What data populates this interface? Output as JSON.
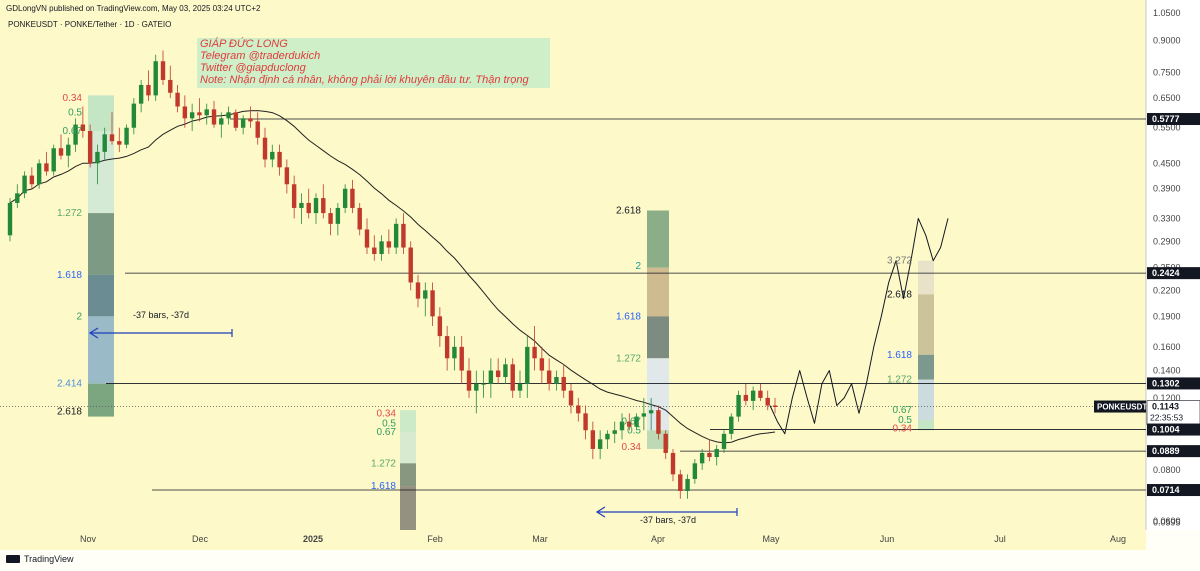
{
  "header": {
    "published": "GDLongVN published on TradingView.com, May 03, 2025 03:24 UTC+2",
    "symbol_line": "PONKEUSDT · PONKE/Tether · 1D · GATEIO"
  },
  "note_box": {
    "lines": [
      "GIÁP ĐỨC LONG",
      "Telegram @traderdukich",
      "Twitter @giapduclong",
      "Note: Nhận định cá nhân, không phải lời khuyên đầu tư. Thận trọng"
    ]
  },
  "footer": {
    "brand": "TradingView"
  },
  "colors": {
    "background": "#fdf9c8",
    "up": "#22883a",
    "down": "#c0392b",
    "ma": "#222222",
    "fib_red": "#e04b4b",
    "fib_green": "#2f9e5f",
    "fib_blue": "#2962ff",
    "arrow": "#1e3fbf"
  },
  "chart_data": {
    "type": "candlestick",
    "symbol": "PONKEUSDT",
    "timeframe": "1D",
    "exchange": "GATEIO",
    "y_scale": "log",
    "ylim": [
      0.057,
      1.08
    ],
    "y_ticks": [
      1.05,
      0.9,
      0.75,
      0.65,
      0.55,
      0.45,
      0.39,
      0.33,
      0.29,
      0.25,
      0.22,
      0.19,
      0.16,
      0.14,
      0.12,
      0.1,
      0.08,
      0.06,
      0.0595
    ],
    "y_tick_labels": [
      "1.0500",
      "0.9000",
      "0.7500",
      "0.6500",
      "0.5500",
      "0.4500",
      "0.3900",
      "0.3300",
      "0.2900",
      "0.2500",
      "0.2200",
      "0.1900",
      "0.1600",
      "0.1400",
      "0.1200",
      "0.1000",
      "0.0800",
      "0.0600",
      "0.0595"
    ],
    "x_labels": [
      "Nov",
      "Dec",
      "2025",
      "Feb",
      "Mar",
      "Apr",
      "May",
      "Jun",
      "Jul",
      "Aug"
    ],
    "x_label_pos": [
      88,
      200,
      313,
      435,
      540,
      658,
      771,
      887,
      1000,
      1118
    ],
    "price_badges": [
      {
        "label": "0.5777",
        "value": 0.5777,
        "type": "line"
      },
      {
        "label": "0.2424",
        "value": 0.2424,
        "type": "line"
      },
      {
        "label": "0.1302",
        "value": 0.1302,
        "type": "line"
      },
      {
        "label": "0.1143",
        "value": 0.1143,
        "type": "last",
        "symbol": "PONKEUSDT",
        "countdown": "22:35:53"
      },
      {
        "label": "0.1004",
        "value": 0.1004,
        "type": "line"
      },
      {
        "label": "0.0889",
        "value": 0.0889,
        "type": "line"
      },
      {
        "label": "0.0714",
        "value": 0.0714,
        "type": "line"
      }
    ],
    "fib_ranges": [
      {
        "levels": [
          {
            "label": "0.34",
            "value": 0.65,
            "color": "red"
          },
          {
            "label": "0.5",
            "value": 0.6,
            "color": "green"
          },
          {
            "label": "0.67",
            "value": 0.54,
            "color": "green"
          },
          {
            "label": "1.272",
            "value": 0.34,
            "color": "lightgreen"
          },
          {
            "label": "1.618",
            "value": 0.24,
            "color": "blue"
          },
          {
            "label": "2",
            "value": 0.19,
            "color": "green"
          },
          {
            "label": "2.414",
            "value": 0.13,
            "color": "lightblue"
          },
          {
            "label": "2.618",
            "value": 0.111,
            "color": "black"
          }
        ]
      },
      {
        "levels": [
          {
            "label": "0.34",
            "value": 0.11,
            "color": "red"
          },
          {
            "label": "0.5",
            "value": 0.104,
            "color": "green"
          },
          {
            "label": "0.67",
            "value": 0.099,
            "color": "green"
          },
          {
            "label": "1.272",
            "value": 0.083,
            "color": "lightgreen"
          },
          {
            "label": "1.618",
            "value": 0.073,
            "color": "blue"
          }
        ]
      },
      {
        "levels": [
          {
            "label": "2.618",
            "value": 0.345,
            "color": "black"
          },
          {
            "label": "2",
            "value": 0.252,
            "color": "teal"
          },
          {
            "label": "1.618",
            "value": 0.19,
            "color": "blue"
          },
          {
            "label": "1.272",
            "value": 0.15,
            "color": "lightgreen"
          },
          {
            "label": "0.67",
            "value": 0.105,
            "color": "green"
          },
          {
            "label": "0.5",
            "value": 0.1,
            "color": "green"
          },
          {
            "label": "0.34",
            "value": 0.091,
            "color": "red"
          }
        ]
      },
      {
        "levels": [
          {
            "label": "3.272",
            "value": 0.26,
            "color": "gray"
          },
          {
            "label": "2.618",
            "value": 0.215,
            "color": "black"
          },
          {
            "label": "1.618",
            "value": 0.153,
            "color": "blue"
          },
          {
            "label": "1.272",
            "value": 0.133,
            "color": "lightgreen"
          },
          {
            "label": "0.67",
            "value": 0.112,
            "color": "green"
          },
          {
            "label": "0.5",
            "value": 0.106,
            "color": "green"
          },
          {
            "label": "0.34",
            "value": 0.101,
            "color": "red"
          }
        ]
      }
    ],
    "measure_labels": [
      "-37 bars, -37d",
      "-37 bars, -37d"
    ],
    "candles_ohlc": [
      [
        0.3,
        0.37,
        0.29,
        0.36
      ],
      [
        0.36,
        0.4,
        0.35,
        0.38
      ],
      [
        0.38,
        0.43,
        0.37,
        0.42
      ],
      [
        0.42,
        0.44,
        0.39,
        0.4
      ],
      [
        0.4,
        0.46,
        0.39,
        0.45
      ],
      [
        0.45,
        0.48,
        0.42,
        0.43
      ],
      [
        0.43,
        0.5,
        0.42,
        0.49
      ],
      [
        0.49,
        0.53,
        0.46,
        0.47
      ],
      [
        0.47,
        0.52,
        0.44,
        0.5
      ],
      [
        0.5,
        0.58,
        0.48,
        0.56
      ],
      [
        0.56,
        0.62,
        0.52,
        0.54
      ],
      [
        0.54,
        0.56,
        0.44,
        0.45
      ],
      [
        0.45,
        0.5,
        0.4,
        0.48
      ],
      [
        0.48,
        0.55,
        0.46,
        0.53
      ],
      [
        0.53,
        0.6,
        0.5,
        0.51
      ],
      [
        0.51,
        0.55,
        0.48,
        0.5
      ],
      [
        0.5,
        0.56,
        0.49,
        0.55
      ],
      [
        0.55,
        0.65,
        0.53,
        0.63
      ],
      [
        0.63,
        0.72,
        0.6,
        0.7
      ],
      [
        0.7,
        0.76,
        0.64,
        0.66
      ],
      [
        0.66,
        0.83,
        0.64,
        0.8
      ],
      [
        0.8,
        0.85,
        0.7,
        0.72
      ],
      [
        0.72,
        0.78,
        0.65,
        0.67
      ],
      [
        0.67,
        0.7,
        0.6,
        0.62
      ],
      [
        0.62,
        0.66,
        0.55,
        0.58
      ],
      [
        0.58,
        0.63,
        0.54,
        0.6
      ],
      [
        0.6,
        0.65,
        0.57,
        0.59
      ],
      [
        0.59,
        0.63,
        0.56,
        0.61
      ],
      [
        0.61,
        0.64,
        0.55,
        0.56
      ],
      [
        0.56,
        0.6,
        0.52,
        0.58
      ],
      [
        0.58,
        0.62,
        0.56,
        0.6
      ],
      [
        0.6,
        0.61,
        0.54,
        0.55
      ],
      [
        0.55,
        0.59,
        0.53,
        0.58
      ],
      [
        0.58,
        0.62,
        0.55,
        0.57
      ],
      [
        0.57,
        0.6,
        0.5,
        0.52
      ],
      [
        0.52,
        0.55,
        0.44,
        0.46
      ],
      [
        0.46,
        0.5,
        0.44,
        0.48
      ],
      [
        0.48,
        0.5,
        0.42,
        0.44
      ],
      [
        0.44,
        0.46,
        0.38,
        0.4
      ],
      [
        0.4,
        0.42,
        0.33,
        0.35
      ],
      [
        0.35,
        0.38,
        0.32,
        0.36
      ],
      [
        0.36,
        0.39,
        0.33,
        0.34
      ],
      [
        0.34,
        0.38,
        0.32,
        0.37
      ],
      [
        0.37,
        0.4,
        0.33,
        0.34
      ],
      [
        0.34,
        0.35,
        0.3,
        0.32
      ],
      [
        0.32,
        0.36,
        0.3,
        0.35
      ],
      [
        0.35,
        0.4,
        0.34,
        0.39
      ],
      [
        0.39,
        0.41,
        0.34,
        0.35
      ],
      [
        0.35,
        0.36,
        0.3,
        0.31
      ],
      [
        0.31,
        0.33,
        0.27,
        0.28
      ],
      [
        0.28,
        0.3,
        0.26,
        0.27
      ],
      [
        0.27,
        0.3,
        0.26,
        0.29
      ],
      [
        0.29,
        0.31,
        0.27,
        0.28
      ],
      [
        0.28,
        0.33,
        0.27,
        0.32
      ],
      [
        0.32,
        0.34,
        0.27,
        0.28
      ],
      [
        0.28,
        0.29,
        0.22,
        0.23
      ],
      [
        0.23,
        0.24,
        0.2,
        0.21
      ],
      [
        0.21,
        0.23,
        0.19,
        0.22
      ],
      [
        0.22,
        0.23,
        0.18,
        0.19
      ],
      [
        0.19,
        0.2,
        0.16,
        0.17
      ],
      [
        0.17,
        0.18,
        0.14,
        0.15
      ],
      [
        0.15,
        0.17,
        0.14,
        0.16
      ],
      [
        0.16,
        0.17,
        0.13,
        0.14
      ],
      [
        0.14,
        0.15,
        0.12,
        0.125
      ],
      [
        0.125,
        0.14,
        0.11,
        0.13
      ],
      [
        0.13,
        0.14,
        0.12,
        0.13
      ],
      [
        0.13,
        0.15,
        0.12,
        0.14
      ],
      [
        0.14,
        0.15,
        0.13,
        0.135
      ],
      [
        0.135,
        0.15,
        0.13,
        0.145
      ],
      [
        0.145,
        0.15,
        0.12,
        0.125
      ],
      [
        0.125,
        0.14,
        0.12,
        0.13
      ],
      [
        0.13,
        0.17,
        0.12,
        0.16
      ],
      [
        0.16,
        0.18,
        0.14,
        0.15
      ],
      [
        0.15,
        0.16,
        0.13,
        0.14
      ],
      [
        0.14,
        0.15,
        0.125,
        0.13
      ],
      [
        0.13,
        0.14,
        0.125,
        0.135
      ],
      [
        0.135,
        0.145,
        0.12,
        0.125
      ],
      [
        0.125,
        0.13,
        0.11,
        0.115
      ],
      [
        0.115,
        0.12,
        0.105,
        0.11
      ],
      [
        0.11,
        0.115,
        0.095,
        0.1
      ],
      [
        0.1,
        0.105,
        0.085,
        0.09
      ],
      [
        0.09,
        0.1,
        0.085,
        0.095
      ],
      [
        0.095,
        0.1,
        0.09,
        0.098
      ],
      [
        0.098,
        0.105,
        0.093,
        0.1
      ],
      [
        0.1,
        0.11,
        0.095,
        0.105
      ],
      [
        0.105,
        0.11,
        0.1,
        0.102
      ],
      [
        0.102,
        0.11,
        0.1,
        0.108
      ],
      [
        0.108,
        0.12,
        0.1,
        0.11
      ],
      [
        0.11,
        0.12,
        0.1,
        0.112
      ],
      [
        0.112,
        0.115,
        0.095,
        0.098
      ],
      [
        0.098,
        0.1,
        0.085,
        0.088
      ],
      [
        0.088,
        0.09,
        0.075,
        0.078
      ],
      [
        0.078,
        0.08,
        0.068,
        0.071
      ],
      [
        0.071,
        0.078,
        0.068,
        0.076
      ],
      [
        0.076,
        0.085,
        0.074,
        0.083
      ],
      [
        0.083,
        0.09,
        0.08,
        0.088
      ],
      [
        0.088,
        0.095,
        0.084,
        0.086
      ],
      [
        0.086,
        0.092,
        0.082,
        0.09
      ],
      [
        0.09,
        0.1,
        0.088,
        0.098
      ],
      [
        0.098,
        0.11,
        0.095,
        0.108
      ],
      [
        0.108,
        0.125,
        0.105,
        0.122
      ],
      [
        0.122,
        0.13,
        0.115,
        0.118
      ],
      [
        0.118,
        0.128,
        0.112,
        0.125
      ],
      [
        0.125,
        0.13,
        0.118,
        0.12
      ],
      [
        0.12,
        0.125,
        0.112,
        0.115
      ],
      [
        0.115,
        0.12,
        0.11,
        0.114
      ]
    ],
    "projection": [
      0.115,
      0.105,
      0.098,
      0.12,
      0.14,
      0.12,
      0.104,
      0.13,
      0.14,
      0.115,
      0.12,
      0.13,
      0.11,
      0.13,
      0.16,
      0.19,
      0.23,
      0.26,
      0.21,
      0.26,
      0.33,
      0.3,
      0.26,
      0.28,
      0.33
    ]
  }
}
